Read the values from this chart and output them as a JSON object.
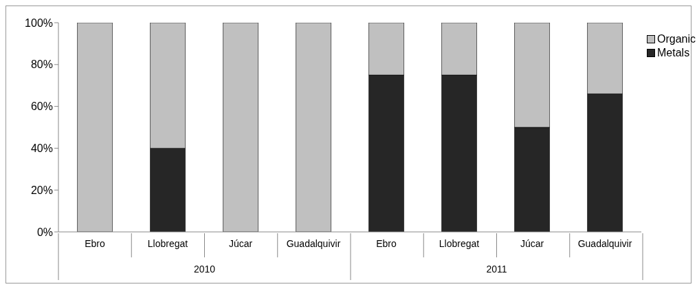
{
  "chart_data": {
    "type": "bar",
    "stacked": true,
    "categories": [
      "Ebro",
      "Llobregat",
      "Júcar",
      "Guadalquivir",
      "Ebro",
      "Llobregat",
      "Júcar",
      "Guadalquivir"
    ],
    "series": [
      {
        "name": "Metals",
        "color": "#262626",
        "values": [
          0,
          40,
          0,
          0,
          75,
          75,
          50,
          66
        ]
      },
      {
        "name": "Organic",
        "color": "#c0c0c0",
        "values": [
          100,
          60,
          100,
          100,
          25,
          25,
          50,
          34
        ]
      }
    ],
    "annotations": [
      "2010",
      "2011"
    ],
    "ylim": [
      0,
      100
    ],
    "yticks": [
      {
        "value": 0,
        "label": "0%"
      },
      {
        "value": 20,
        "label": "20%"
      },
      {
        "value": 40,
        "label": "40%"
      },
      {
        "value": 60,
        "label": "60%"
      },
      {
        "value": 80,
        "label": "80%"
      },
      {
        "value": 100,
        "label": "100%"
      }
    ],
    "legend": "top right",
    "grid": false
  }
}
